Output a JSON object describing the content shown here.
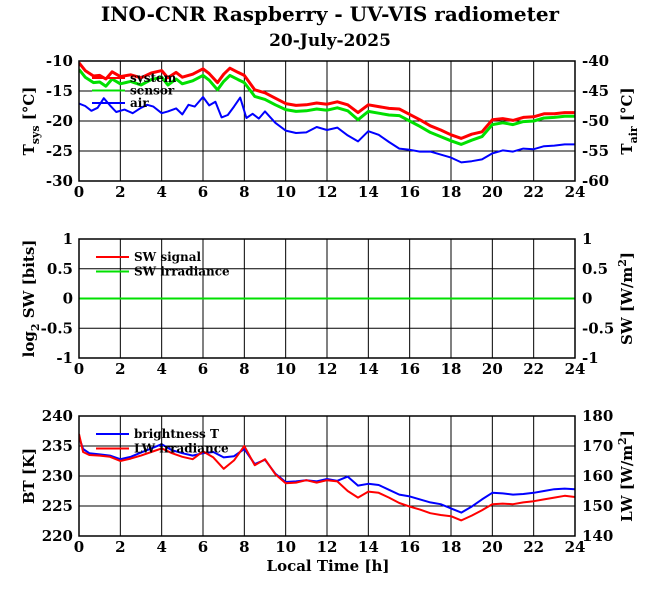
{
  "title": "INO-CNR Raspberry - UV-VIS radiometer",
  "subtitle": "20-July-2025",
  "xlabel": "Local Time [h]",
  "colors": {
    "red": "#ff0000",
    "green": "#00e000",
    "blue": "#0000ff",
    "grid": "#000000"
  },
  "chart_data": [
    {
      "type": "line",
      "xlim": [
        0,
        24
      ],
      "xticks": [
        "0",
        "2",
        "4",
        "6",
        "8",
        "10",
        "12",
        "14",
        "16",
        "18",
        "20",
        "22",
        "24"
      ],
      "ylim": [
        -30,
        -10
      ],
      "yticks": [
        "-10",
        "-15",
        "-20",
        "-25",
        "-30"
      ],
      "y2lim": [
        -60,
        -40
      ],
      "y2ticks": [
        "-40",
        "-45",
        "-50",
        "-55",
        "-60"
      ],
      "ylabel": {
        "main": "T",
        "sub": "sys",
        "unit": " [°C]"
      },
      "y2label": {
        "main": "T",
        "sub": "air",
        "unit": " [°C]"
      },
      "grid": true,
      "legend_position": "top-left",
      "series": [
        {
          "name": "system",
          "color": "#ff0000",
          "axis": "left",
          "x": [
            0,
            0.3,
            0.7,
            1,
            1.3,
            1.6,
            2,
            2.5,
            3,
            3.5,
            4,
            4.3,
            4.7,
            5,
            5.5,
            6,
            6.3,
            6.7,
            7,
            7.3,
            7.7,
            8,
            8.5,
            9,
            9.5,
            10,
            10.5,
            11,
            11.5,
            12,
            12.5,
            13,
            13.5,
            14,
            14.5,
            15,
            15.5,
            16,
            16.5,
            17,
            17.5,
            18,
            18.5,
            19,
            19.5,
            20,
            20.5,
            21,
            21.5,
            22,
            22.5,
            23,
            23.5,
            24
          ],
          "y": [
            -10.3,
            -11.6,
            -12.5,
            -12.4,
            -13,
            -11.8,
            -12.6,
            -12.3,
            -12.8,
            -12,
            -11.6,
            -12.8,
            -11.9,
            -12.7,
            -12.2,
            -11.3,
            -12.1,
            -13.6,
            -12.2,
            -11.2,
            -11.9,
            -12.4,
            -14.8,
            -15.3,
            -16.2,
            -17.1,
            -17.4,
            -17.3,
            -17.0,
            -17.2,
            -16.8,
            -17.3,
            -18.6,
            -17.3,
            -17.6,
            -17.9,
            -18.0,
            -18.9,
            -19.8,
            -20.8,
            -21.5,
            -22.3,
            -22.9,
            -22.2,
            -21.8,
            -19.8,
            -19.6,
            -19.9,
            -19.4,
            -19.3,
            -18.8,
            -18.8,
            -18.6,
            -18.6
          ]
        },
        {
          "name": "sensor",
          "color": "#00e000",
          "axis": "left",
          "x": [
            0,
            0.3,
            0.7,
            1,
            1.3,
            1.6,
            2,
            2.5,
            3,
            3.5,
            4,
            4.3,
            4.7,
            5,
            5.5,
            6,
            6.3,
            6.7,
            7,
            7.3,
            7.7,
            8,
            8.5,
            9,
            9.5,
            10,
            10.5,
            11,
            11.5,
            12,
            12.5,
            13,
            13.5,
            14,
            14.5,
            15,
            15.5,
            16,
            16.5,
            17,
            17.5,
            18,
            18.5,
            19,
            19.5,
            20,
            20.5,
            21,
            21.5,
            22,
            22.5,
            23,
            23.5,
            24
          ],
          "y": [
            -11.4,
            -12.7,
            -13.6,
            -13.5,
            -14.2,
            -13,
            -13.8,
            -13.4,
            -14,
            -13.1,
            -12.7,
            -14,
            -13,
            -13.8,
            -13.3,
            -12.4,
            -13.2,
            -14.8,
            -13.4,
            -12.4,
            -13.1,
            -13.6,
            -15.9,
            -16.4,
            -17.3,
            -18.1,
            -18.4,
            -18.3,
            -18.0,
            -18.2,
            -17.8,
            -18.3,
            -19.8,
            -18.4,
            -18.7,
            -19.0,
            -19.1,
            -20.0,
            -20.9,
            -21.9,
            -22.6,
            -23.3,
            -23.9,
            -23.2,
            -22.6,
            -20.6,
            -20.3,
            -20.6,
            -20.1,
            -20.0,
            -19.5,
            -19.4,
            -19.2,
            -19.2
          ]
        },
        {
          "name": "air",
          "color": "#0000ff",
          "axis": "right",
          "x": [
            0,
            0.3,
            0.6,
            0.9,
            1.2,
            1.5,
            1.8,
            2.2,
            2.6,
            3,
            3.3,
            3.6,
            4,
            4.3,
            4.7,
            5,
            5.3,
            5.6,
            6,
            6.3,
            6.6,
            6.9,
            7.2,
            7.5,
            7.8,
            8.1,
            8.4,
            8.7,
            9,
            9.5,
            10,
            10.5,
            11,
            11.5,
            12,
            12.5,
            13,
            13.5,
            14,
            14.5,
            15,
            15.5,
            16,
            16.5,
            17,
            17.5,
            18,
            18.5,
            19,
            19.5,
            20,
            20.5,
            21,
            21.5,
            22,
            22.5,
            23,
            23.5,
            24
          ],
          "y": [
            -47.1,
            -47.5,
            -48.3,
            -47.8,
            -46.2,
            -47.4,
            -48.5,
            -48.1,
            -48.7,
            -47.8,
            -47.3,
            -47.6,
            -48.7,
            -48.4,
            -47.9,
            -48.9,
            -47.3,
            -47.6,
            -46.0,
            -47.4,
            -46.8,
            -49.4,
            -49.0,
            -47.6,
            -46.1,
            -49.5,
            -48.8,
            -49.6,
            -48.4,
            -50.3,
            -51.6,
            -52.0,
            -51.9,
            -51.0,
            -51.5,
            -51.1,
            -52.4,
            -53.4,
            -51.7,
            -52.3,
            -53.5,
            -54.6,
            -54.8,
            -55.1,
            -55.1,
            -55.6,
            -56.1,
            -56.9,
            -56.7,
            -56.4,
            -55.4,
            -54.9,
            -55.1,
            -54.6,
            -54.7,
            -54.2,
            -54.1,
            -53.9,
            -53.9
          ]
        }
      ]
    },
    {
      "type": "line",
      "xlim": [
        0,
        24
      ],
      "xticks": [
        "0",
        "2",
        "4",
        "6",
        "8",
        "10",
        "12",
        "14",
        "16",
        "18",
        "20",
        "22",
        "24"
      ],
      "ylim": [
        -1,
        1
      ],
      "yticks": [
        "1",
        "0.5",
        "0",
        "-0.5",
        "-1"
      ],
      "y2lim": [
        -1,
        1
      ],
      "y2ticks": [
        "1",
        "0.5",
        "0",
        "-0.5",
        "-1"
      ],
      "ylabel": {
        "main": "log",
        "sub": "2",
        "unit": " SW [bits]"
      },
      "y2label": {
        "main": "SW [W/m",
        "sup": "2",
        "unit": "]"
      },
      "grid": true,
      "legend_position": "top-left",
      "series": [
        {
          "name": "SW signal",
          "color": "#ff0000",
          "axis": "left",
          "x": [
            0,
            24
          ],
          "y": [
            0,
            0
          ]
        },
        {
          "name": "SW irradiance",
          "color": "#00e000",
          "axis": "right",
          "x": [
            0,
            24
          ],
          "y": [
            0,
            0
          ]
        }
      ]
    },
    {
      "type": "line",
      "xlim": [
        0,
        24
      ],
      "xticks": [
        "0",
        "2",
        "4",
        "6",
        "8",
        "10",
        "12",
        "14",
        "16",
        "18",
        "20",
        "22",
        "24"
      ],
      "ylim": [
        220,
        240
      ],
      "yticks": [
        "240",
        "235",
        "230",
        "225",
        "220"
      ],
      "y2lim": [
        140,
        180
      ],
      "y2ticks": [
        "180",
        "170",
        "160",
        "150",
        "140"
      ],
      "ylabel": {
        "main": "BT [K]"
      },
      "y2label": {
        "main": "LW [W/m",
        "sup": "2",
        "unit": "]"
      },
      "grid": true,
      "legend_position": "top-left",
      "series": [
        {
          "name": "brightness T",
          "color": "#0000ff",
          "axis": "left",
          "x": [
            0,
            0.2,
            0.5,
            1,
            1.5,
            2,
            2.5,
            3,
            3.5,
            4,
            4.5,
            5,
            5.5,
            6,
            6.5,
            7,
            7.5,
            8,
            8.5,
            9,
            9.5,
            10,
            10.5,
            11,
            11.5,
            12,
            12.5,
            13,
            13.5,
            14,
            14.5,
            15,
            15.5,
            16,
            16.5,
            17,
            17.5,
            18,
            18.5,
            19,
            19.5,
            20,
            20.5,
            21,
            21.5,
            22,
            22.5,
            23,
            23.5,
            24
          ],
          "y": [
            236.5,
            234.5,
            233.8,
            233.6,
            233.4,
            232.8,
            233.2,
            233.9,
            234.6,
            235.3,
            234.3,
            233.8,
            233.4,
            233.8,
            234.0,
            233.1,
            233.3,
            234.5,
            232.0,
            232.7,
            230.4,
            229.0,
            229.1,
            229.3,
            229.1,
            229.5,
            229.2,
            229.9,
            228.4,
            228.7,
            228.5,
            227.7,
            226.9,
            226.6,
            226.1,
            225.6,
            225.3,
            224.6,
            223.9,
            224.9,
            226.1,
            227.2,
            227.1,
            226.9,
            227.0,
            227.2,
            227.5,
            227.8,
            227.9,
            227.8
          ]
        },
        {
          "name": "LW irradiance",
          "color": "#ff0000",
          "axis": "right",
          "x": [
            0,
            0.2,
            0.5,
            1,
            1.5,
            2,
            2.5,
            3,
            3.5,
            4,
            4.5,
            5,
            5.5,
            6,
            6.5,
            7,
            7.5,
            8,
            8.5,
            9,
            9.5,
            10,
            10.5,
            11,
            11.5,
            12,
            12.5,
            13,
            13.5,
            14,
            14.5,
            15,
            15.5,
            16,
            16.5,
            17,
            17.5,
            18,
            18.5,
            19,
            19.5,
            20,
            20.5,
            21,
            21.5,
            22,
            22.5,
            23,
            23.5,
            24
          ],
          "y": [
            174,
            168,
            167,
            166.8,
            166.4,
            165,
            165.8,
            166.8,
            168,
            169.2,
            167.6,
            166.4,
            165.6,
            168.2,
            166.2,
            162.4,
            165.2,
            170,
            163.6,
            165.6,
            160.6,
            157.6,
            157.8,
            158.6,
            157.8,
            158.6,
            158.2,
            155,
            152.8,
            154.8,
            154.4,
            152.8,
            151.0,
            149.8,
            148.8,
            147.6,
            147.0,
            146.6,
            145.2,
            146.8,
            148.6,
            150.6,
            150.8,
            150.6,
            151.2,
            151.6,
            152.2,
            152.8,
            153.4,
            153.0
          ]
        }
      ]
    }
  ]
}
